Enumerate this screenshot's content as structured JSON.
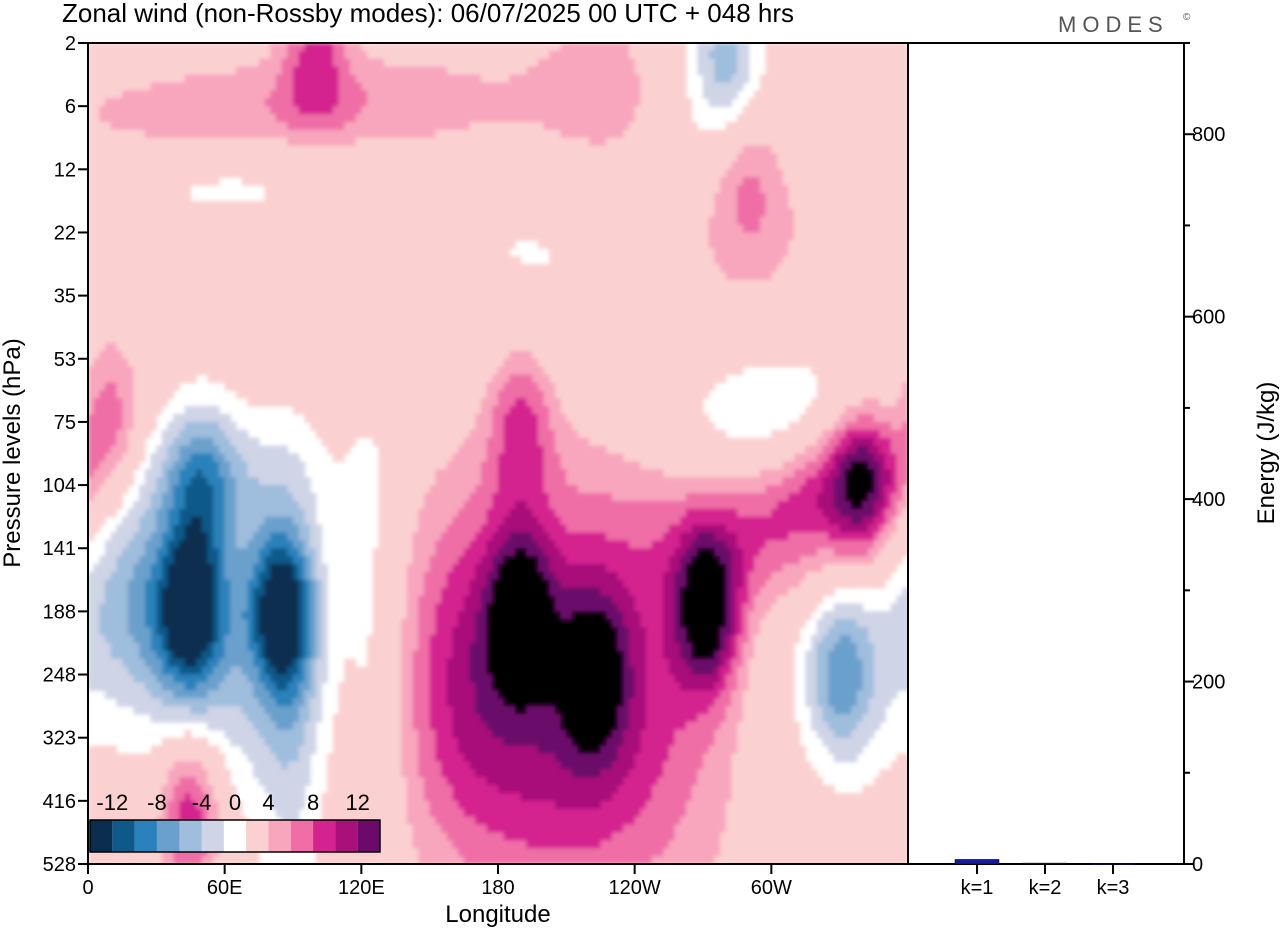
{
  "title": "Zonal wind (non-Rossby modes):  06/07/2025  00 UTC  + 048 hrs",
  "logo": "MODES",
  "logo_mark": "©",
  "chart_data": [
    {
      "type": "heatmap",
      "title": "Zonal wind (non-Rossby modes):  06/07/2025  00 UTC  + 048 hrs",
      "xlabel": "Longitude",
      "ylabel": "Pressure levels (hPa)",
      "x_ticks": [
        "0",
        "60E",
        "120E",
        "180",
        "120W",
        "60W"
      ],
      "x_tick_values": [
        0,
        60,
        120,
        180,
        240,
        300
      ],
      "xlim": [
        0,
        360
      ],
      "y_ticks": [
        "2",
        "6",
        "12",
        "22",
        "35",
        "53",
        "75",
        "104",
        "141",
        "188",
        "248",
        "323",
        "416",
        "528"
      ],
      "y_scale": "categorical-levels",
      "colorbar": {
        "labels": [
          "-12",
          "-8",
          "-4",
          "0",
          "4",
          "8",
          "12"
        ],
        "levels": [
          -14,
          -12,
          -10,
          -8,
          -6,
          -4,
          -2,
          2,
          4,
          6,
          8,
          10,
          12,
          14
        ],
        "colors": [
          "#0b2e4f",
          "#0d5a8a",
          "#2a82bb",
          "#6aa0cc",
          "#9fbddd",
          "#cfd4e6",
          "#ffffff",
          "#fbd0d0",
          "#f8a6bd",
          "#ef6ea6",
          "#d4238f",
          "#a8107a",
          "#6b0a6b"
        ],
        "placement": "bottom-left"
      },
      "features": [
        {
          "lon": 45,
          "level": "188",
          "value": -12
        },
        {
          "lon": 85,
          "level": "188",
          "value": -12
        },
        {
          "lon": 190,
          "level": "188",
          "value": 10
        },
        {
          "lon": 222,
          "level": "248",
          "value": 8
        },
        {
          "lon": 272,
          "level": "188",
          "value": 12
        },
        {
          "lon": 190,
          "level": "75",
          "value": 6
        },
        {
          "lon": 340,
          "level": "104",
          "value": 8
        },
        {
          "lon": 10,
          "level": "75",
          "value": 6
        },
        {
          "lon": 50,
          "level": "104",
          "value": -6
        },
        {
          "lon": 330,
          "level": "248",
          "value": -6
        },
        {
          "lon": 45,
          "level": "416",
          "value": 4
        },
        {
          "lon": 290,
          "level": "12",
          "value": 4
        },
        {
          "lon": 100,
          "level": "2",
          "value": 6
        },
        {
          "lon": 280,
          "level": "2",
          "value": -6
        }
      ]
    },
    {
      "type": "bar",
      "categories": [
        "k=1",
        "k=2",
        "k=3"
      ],
      "values": [
        5,
        1,
        0.5
      ],
      "ylabel": "Energy (J/kg)",
      "ylim": [
        0,
        900
      ],
      "y_ticks": [
        0,
        200,
        400,
        600,
        800
      ],
      "bar_colors": [
        "#1a1aa0",
        "#1a1aa0",
        "#1a1aa0"
      ]
    }
  ]
}
